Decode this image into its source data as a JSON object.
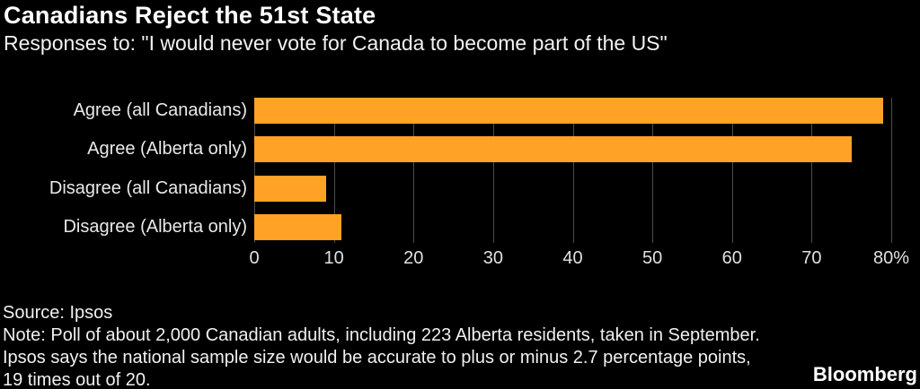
{
  "header": {
    "title": "Canadians Reject the 51st State",
    "subtitle": "Responses to: \"I would never vote for Canada to become part of the US\""
  },
  "chart_data": {
    "type": "bar",
    "orientation": "horizontal",
    "title": "Canadians Reject the 51st State",
    "subtitle": "Responses to: \"I would never vote for Canada to become part of the US\"",
    "categories": [
      "Agree (all Canadians)",
      "Agree (Alberta only)",
      "Disagree (all Canadians)",
      "Disagree (Alberta only)"
    ],
    "values": [
      79,
      75,
      9,
      11
    ],
    "unit": "percent",
    "xlim": [
      0,
      80
    ],
    "x_tick_labels": [
      "0",
      "10",
      "20",
      "30",
      "40",
      "50",
      "60",
      "70",
      "80%"
    ],
    "x_tick_values": [
      0,
      10,
      20,
      30,
      40,
      50,
      60,
      70,
      80
    ],
    "grid": true,
    "legend": false,
    "bar_color": "#FFA226",
    "gridline_color": "#4d4d4d",
    "background_color": "#000000"
  },
  "footer": {
    "source": "Source: Ipsos",
    "note_lines": [
      "Note: Poll of about 2,000 Canadian adults, including 223 Alberta residents, taken in September.",
      "Ipsos says the national sample size would be accurate to plus or minus 2.7 percentage points,",
      "19 times out of 20."
    ],
    "brand": "Bloomberg"
  }
}
